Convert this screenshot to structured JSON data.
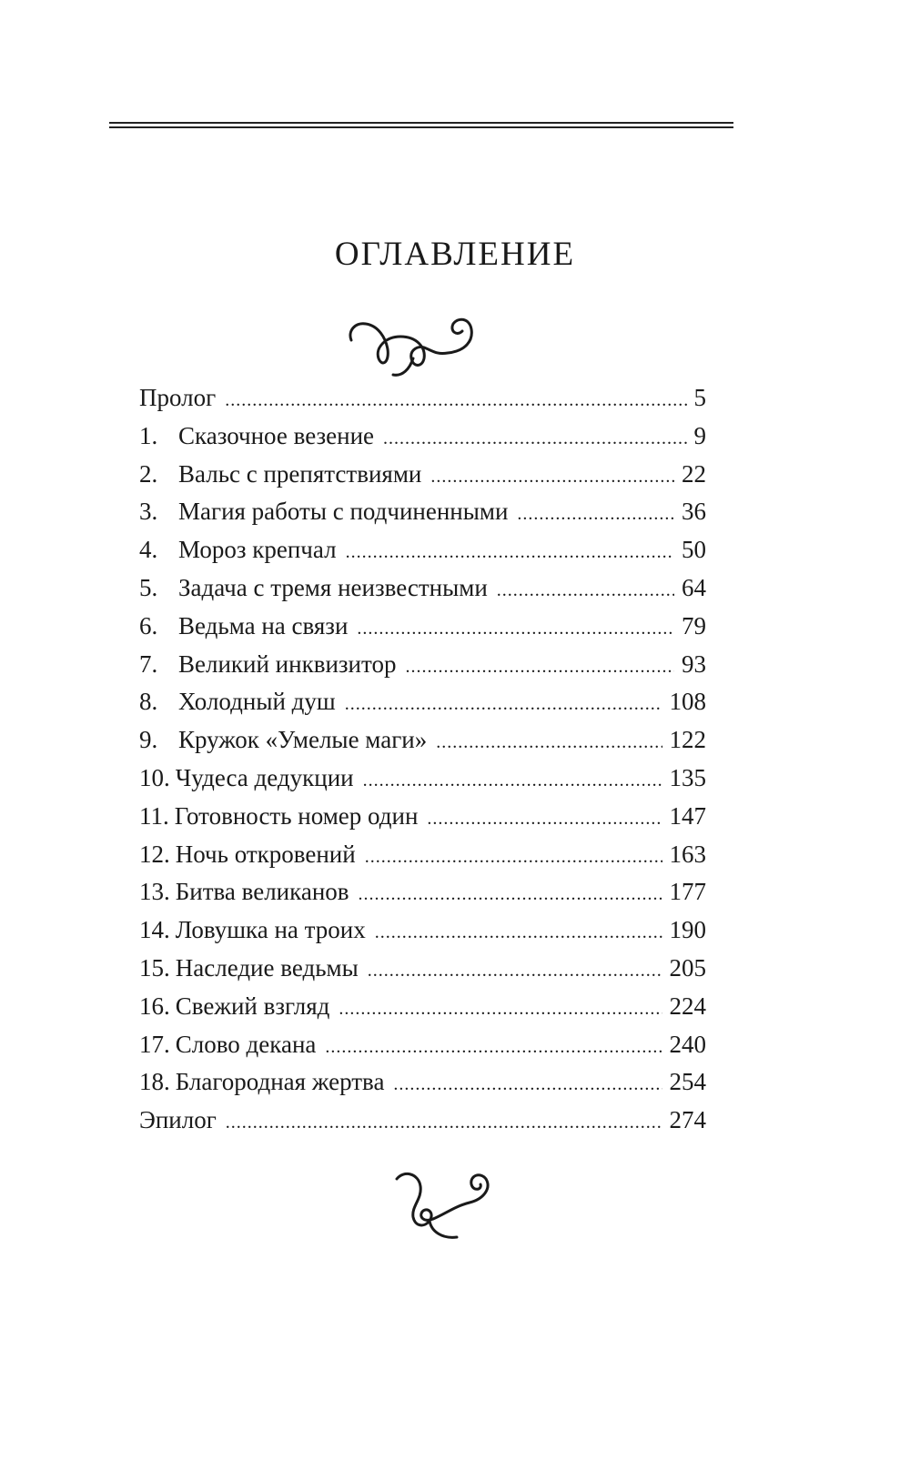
{
  "title": "ОГЛАВЛЕНИЕ",
  "ornaments": [
    "swirl-ornament",
    "swirl-ornament"
  ],
  "entries": [
    {
      "num": "",
      "label": "Пролог",
      "page": "5"
    },
    {
      "num": "1.",
      "label": "Сказочное везение",
      "page": "9"
    },
    {
      "num": "2.",
      "label": "Вальс с препятствиями",
      "page": "22"
    },
    {
      "num": "3.",
      "label": "Магия работы с подчиненными",
      "page": "36"
    },
    {
      "num": "4.",
      "label": "Мороз крепчал",
      "page": "50"
    },
    {
      "num": "5.",
      "label": "Задача с тремя неизвестными",
      "page": "64"
    },
    {
      "num": "6.",
      "label": "Ведьма на связи",
      "page": "79"
    },
    {
      "num": "7.",
      "label": "Великий инквизитор",
      "page": "93"
    },
    {
      "num": "8.",
      "label": "Холодный душ",
      "page": "108"
    },
    {
      "num": "9.",
      "label": "Кружок «Умелые маги»",
      "page": "122"
    },
    {
      "num": "10.",
      "label": "Чудеса дедукции",
      "page": "135"
    },
    {
      "num": "11.",
      "label": "Готовность номер один",
      "page": "147"
    },
    {
      "num": "12.",
      "label": "Ночь откровений",
      "page": "163"
    },
    {
      "num": "13.",
      "label": "Битва великанов",
      "page": "177"
    },
    {
      "num": "14.",
      "label": "Ловушка на троих",
      "page": "190"
    },
    {
      "num": "15.",
      "label": "Наследие ведьмы",
      "page": "205"
    },
    {
      "num": "16.",
      "label": "Свежий взгляд",
      "page": "224"
    },
    {
      "num": "17.",
      "label": "Слово декана",
      "page": "240"
    },
    {
      "num": "18.",
      "label": "Благородная жертва",
      "page": "254"
    },
    {
      "num": "",
      "label": "Эпилог",
      "page": "274"
    }
  ]
}
